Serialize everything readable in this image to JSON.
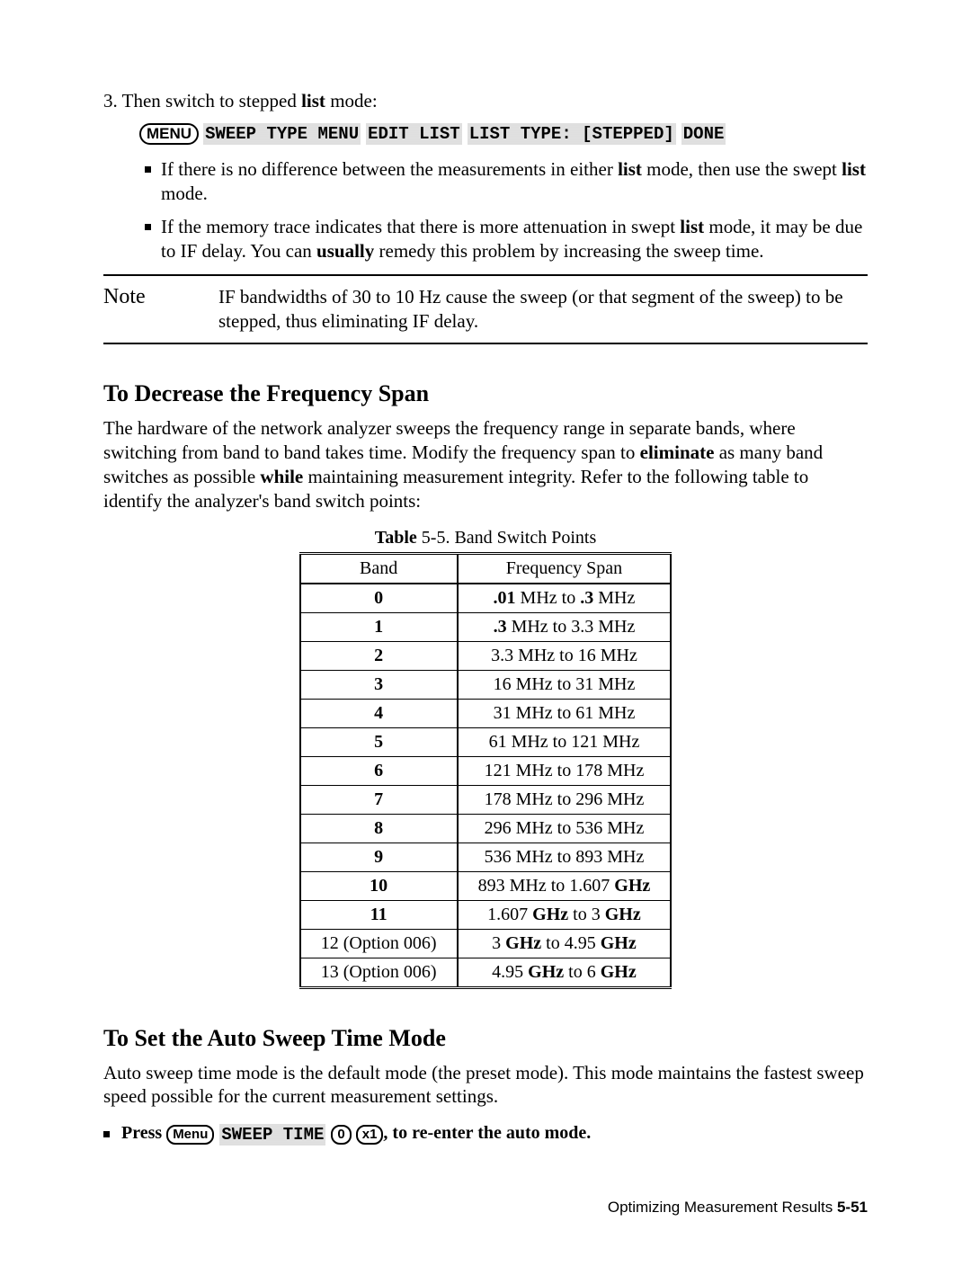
{
  "step": {
    "number": "3.",
    "text_before": "Then switch to stepped",
    "bold_word": "list",
    "text_after": "mode:"
  },
  "menu_sequence": {
    "hardkey": "MENU",
    "softkeys": [
      "SWEEP TYPE MENU",
      "EDIT LIST",
      "LIST TYPE: [STEPPED]",
      "DONE"
    ]
  },
  "bullet1": {
    "pre": "If there is no difference between the measurements in either",
    "b1": "list",
    "mid": "mode, then use the swept",
    "b2": "list",
    "post": "mode."
  },
  "bullet2": {
    "pre": "If the memory trace indicates that there is more attenuation in swept",
    "b1": "list",
    "mid": "mode, it may be due to IF delay. You can",
    "b2": "usually",
    "post": "remedy this problem by increasing the sweep time."
  },
  "note": {
    "label": "Note",
    "text": "IF bandwidths of 30 to 10 Hz cause the sweep (or that segment of the sweep) to be stepped, thus eliminating IF delay."
  },
  "section1": {
    "bold": "To",
    "rest": "Decrease the Frequency Span",
    "para_pre": "The hardware of the network analyzer sweeps the frequency range in separate bands, where switching from band to band takes time. Modify the frequency span to",
    "para_b1": "eliminate",
    "para_mid": "as many band switches as possible",
    "para_b2": "while",
    "para_post": "maintaining measurement integrity. Refer to the following table to identify the analyzer's band switch points:"
  },
  "table": {
    "caption_bold": "Table",
    "caption_rest": "5-5. Band Switch Points",
    "head_band": "Band",
    "head_freq": "Frequency Span",
    "rows": [
      {
        "band": "0",
        "pre": "",
        "b1": ".01",
        "mid": " MHz to ",
        "b2": ".3",
        "post": " MHz"
      },
      {
        "band": "1",
        "pre": "",
        "b1": ".3",
        "mid": " MHz to 3.3 MHz",
        "b2": "",
        "post": ""
      },
      {
        "band": "2",
        "pre": "3.3 MHz to 16 MHz",
        "b1": "",
        "mid": "",
        "b2": "",
        "post": ""
      },
      {
        "band": "3",
        "pre": "16 MHz to 31 MHz",
        "b1": "",
        "mid": "",
        "b2": "",
        "post": ""
      },
      {
        "band": "4",
        "pre": "31 MHz to 61 MHz",
        "b1": "",
        "mid": "",
        "b2": "",
        "post": ""
      },
      {
        "band": "5",
        "pre": "61 MHz to 121 MHz",
        "b1": "",
        "mid": "",
        "b2": "",
        "post": ""
      },
      {
        "band": "6",
        "pre": "121 MHz to 178 MHz",
        "b1": "",
        "mid": "",
        "b2": "",
        "post": ""
      },
      {
        "band": "7",
        "pre": "178 MHz to 296 MHz",
        "b1": "",
        "mid": "",
        "b2": "",
        "post": ""
      },
      {
        "band": "8",
        "pre": "296 MHz to 536 MHz",
        "b1": "",
        "mid": "",
        "b2": "",
        "post": ""
      },
      {
        "band": "9",
        "pre": "536 MHz to 893 MHz",
        "b1": "",
        "mid": "",
        "b2": "",
        "post": ""
      },
      {
        "band": "10",
        "pre": "893 MHz to 1.607 ",
        "b1": "GHz",
        "mid": "",
        "b2": "",
        "post": ""
      },
      {
        "band": "11",
        "pre": "1.607 ",
        "b1": "GHz",
        "mid": " to 3 ",
        "b2": "GHz",
        "post": ""
      },
      {
        "band": "12  (Option  006)",
        "band_plain": true,
        "pre": "3 ",
        "b1": "GHz",
        "mid": " to 4.95 ",
        "b2": "GHz",
        "post": ""
      },
      {
        "band": "13  (Option  006)",
        "band_plain": true,
        "pre": "4.95 ",
        "b1": "GHz",
        "mid": " to 6 ",
        "b2": "GHz",
        "post": ""
      }
    ]
  },
  "section2": {
    "bold": "To",
    "rest": "Set the Auto Sweep Time Mode",
    "para": "Auto sweep time mode is the default mode (the preset mode). This mode maintains the fastest sweep speed possible for the current measurement settings."
  },
  "press": {
    "label": "Press",
    "hardkey": "Menu",
    "softkey": "SWEEP TIME",
    "key0": "0",
    "keyx1": "x1",
    "tail": ", to re-enter the auto mode."
  },
  "footer": {
    "text": "Optimizing Measurement Results",
    "page": "5-51"
  }
}
